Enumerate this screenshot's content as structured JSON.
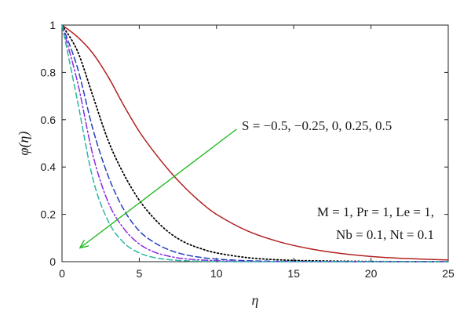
{
  "chart_data": {
    "type": "line",
    "xlabel": "η",
    "ylabel": "φ(η)",
    "xlim": [
      0,
      25
    ],
    "ylim": [
      0,
      1
    ],
    "xticks": [
      0,
      5,
      10,
      15,
      20,
      25
    ],
    "yticks": [
      0,
      0.2,
      0.4,
      0.6,
      0.8,
      1
    ],
    "xtick_labels": [
      "0",
      "5",
      "10",
      "15",
      "20",
      "25"
    ],
    "ytick_labels": [
      "0",
      "0.2",
      "0.4",
      "0.6",
      "0.8",
      "1"
    ],
    "grid": false,
    "annotation_arrow_label": "S = −0.5, −0.25, 0, 0.25, 0.5",
    "parameters_line1": "M = 1, Pr = 1, Le = 1,",
    "parameters_line2": "Nb = 0.1, Nt = 0.1",
    "series": [
      {
        "color": "#b22222",
        "dash": "solid",
        "x": [
          0,
          1,
          2,
          3,
          4,
          5,
          6,
          7,
          8,
          9,
          10,
          12,
          14,
          16,
          18,
          20,
          22,
          25
        ],
        "values": [
          1.0,
          0.95,
          0.88,
          0.78,
          0.66,
          0.55,
          0.46,
          0.38,
          0.31,
          0.25,
          0.2,
          0.13,
          0.085,
          0.055,
          0.035,
          0.022,
          0.014,
          0.007
        ]
      },
      {
        "color": "#000000",
        "dash": "dotted",
        "x": [
          0,
          1,
          2,
          3,
          4,
          5,
          6,
          7,
          8,
          9,
          10,
          12,
          14,
          16,
          20,
          25
        ],
        "values": [
          1.0,
          0.89,
          0.7,
          0.51,
          0.37,
          0.26,
          0.18,
          0.12,
          0.08,
          0.055,
          0.037,
          0.017,
          0.008,
          0.004,
          0.001,
          0.0
        ]
      },
      {
        "color": "#1f3fbf",
        "dash": "dashed",
        "x": [
          0,
          1,
          2,
          3,
          4,
          5,
          6,
          7,
          8,
          9,
          10,
          12,
          15,
          20,
          25
        ],
        "values": [
          1.0,
          0.82,
          0.56,
          0.36,
          0.22,
          0.13,
          0.08,
          0.048,
          0.029,
          0.018,
          0.011,
          0.004,
          0.001,
          0.0,
          0.0
        ]
      },
      {
        "color": "#8a2be2",
        "dash": "dashdot",
        "x": [
          0,
          1,
          2,
          3,
          4,
          5,
          6,
          7,
          8,
          10,
          12,
          15,
          20,
          25
        ],
        "values": [
          1.0,
          0.76,
          0.45,
          0.25,
          0.14,
          0.075,
          0.04,
          0.022,
          0.012,
          0.004,
          0.001,
          0.0,
          0.0,
          0.0
        ]
      },
      {
        "color": "#2bb5a0",
        "dash": "dashed",
        "x": [
          0,
          1,
          2,
          3,
          4,
          5,
          6,
          7,
          8,
          10,
          12,
          15,
          20,
          25
        ],
        "values": [
          1.0,
          0.68,
          0.35,
          0.17,
          0.08,
          0.037,
          0.017,
          0.008,
          0.004,
          0.001,
          0.0,
          0.0,
          0.0,
          0.0
        ]
      }
    ],
    "arrow": {
      "color": "#22bb22",
      "from": [
        11.3,
        0.56
      ],
      "to": [
        1.2,
        0.06
      ]
    }
  }
}
